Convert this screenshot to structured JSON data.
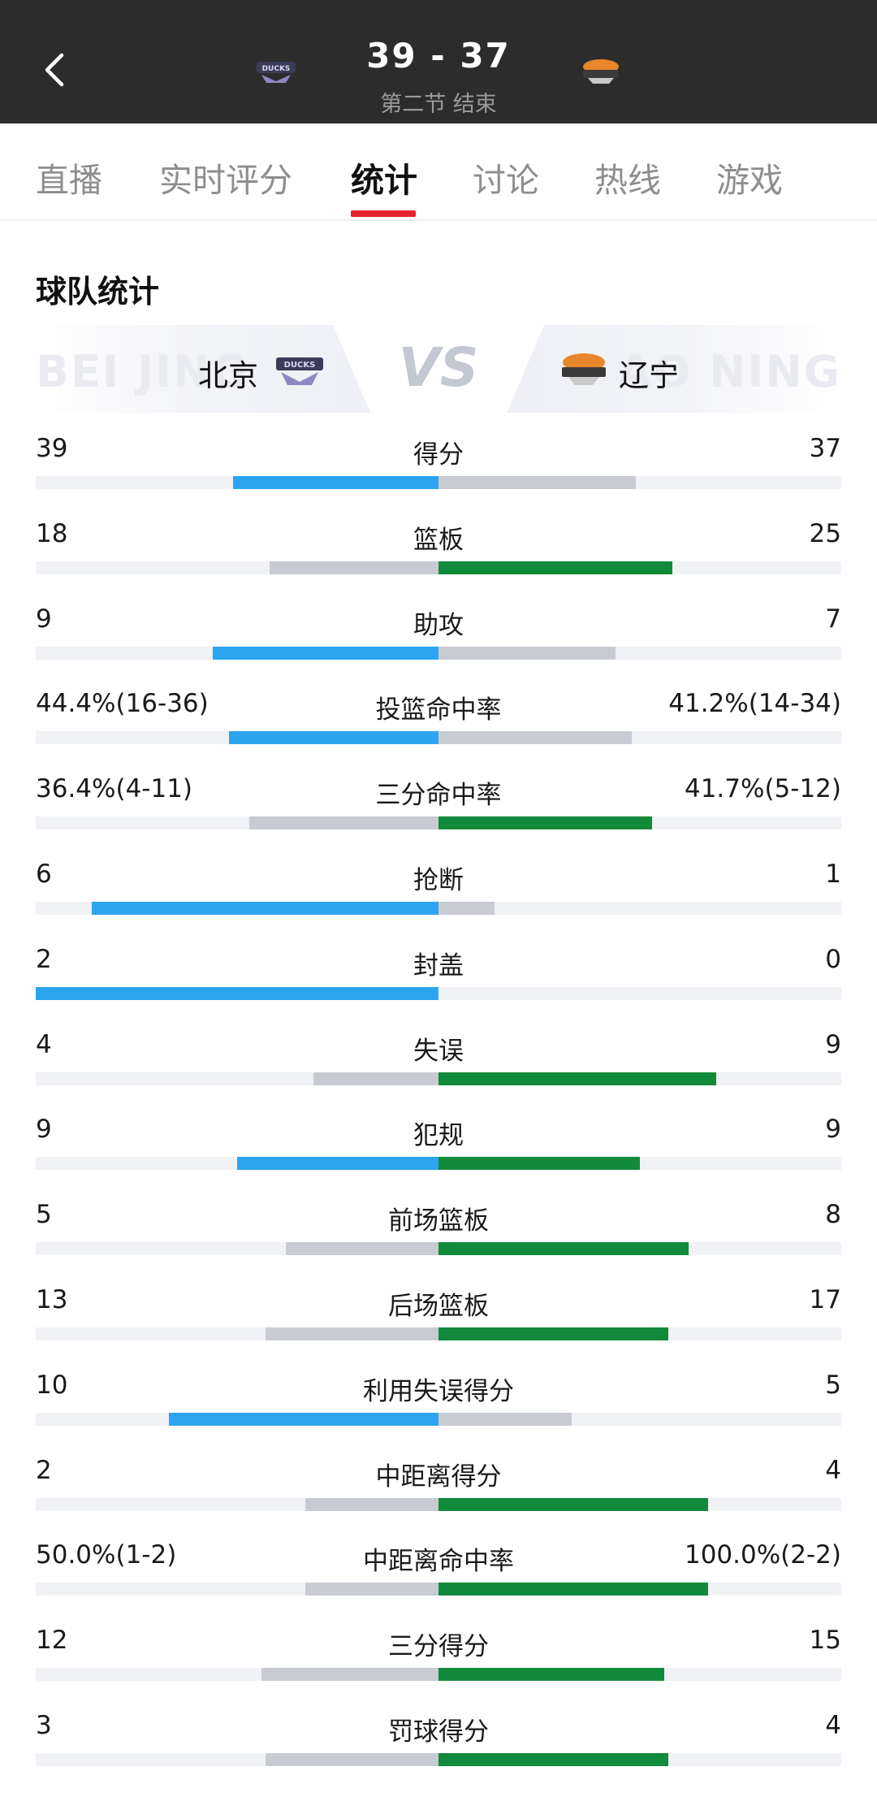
{
  "header": {
    "score": "39 - 37",
    "period": "第二节 结束"
  },
  "tabs": [
    {
      "label": "直播",
      "active": false
    },
    {
      "label": "实时评分",
      "active": false
    },
    {
      "label": "统计",
      "active": true
    },
    {
      "label": "讨论",
      "active": false
    },
    {
      "label": "热线",
      "active": false
    },
    {
      "label": "游戏",
      "active": false
    }
  ],
  "section_title": "球队统计",
  "matchup": {
    "home_name": "北京",
    "away_name": "辽宁",
    "vs": "VS",
    "home_bg_text": "BEI JING",
    "away_bg_text": "AO NING"
  },
  "colors": {
    "home_leader": "#2ba5ef",
    "away_leader": "#128a3b",
    "trailing": "#c9cbd3",
    "active_tab": "#e4242c"
  },
  "stats": [
    {
      "label": "得分",
      "home": "39",
      "away": "37",
      "home_frac": 0.51,
      "away_frac": 0.49
    },
    {
      "label": "篮板",
      "home": "18",
      "away": "25",
      "home_frac": 0.42,
      "away_frac": 0.58
    },
    {
      "label": "助攻",
      "home": "9",
      "away": "7",
      "home_frac": 0.56,
      "away_frac": 0.44
    },
    {
      "label": "投篮命中率",
      "home": "44.4%(16-36)",
      "away": "41.2%(14-34)",
      "home_frac": 0.52,
      "away_frac": 0.48
    },
    {
      "label": "三分命中率",
      "home": "36.4%(4-11)",
      "away": "41.7%(5-12)",
      "home_frac": 0.47,
      "away_frac": 0.53
    },
    {
      "label": "抢断",
      "home": "6",
      "away": "1",
      "home_frac": 0.86,
      "away_frac": 0.14
    },
    {
      "label": "封盖",
      "home": "2",
      "away": "0",
      "home_frac": 1.0,
      "away_frac": 0.0
    },
    {
      "label": "失误",
      "home": "4",
      "away": "9",
      "home_frac": 0.31,
      "away_frac": 0.69
    },
    {
      "label": "犯规",
      "home": "9",
      "away": "9",
      "home_frac": 0.5,
      "away_frac": 0.5
    },
    {
      "label": "前场篮板",
      "home": "5",
      "away": "8",
      "home_frac": 0.38,
      "away_frac": 0.62
    },
    {
      "label": "后场篮板",
      "home": "13",
      "away": "17",
      "home_frac": 0.43,
      "away_frac": 0.57
    },
    {
      "label": "利用失误得分",
      "home": "10",
      "away": "5",
      "home_frac": 0.67,
      "away_frac": 0.33
    },
    {
      "label": "中距离得分",
      "home": "2",
      "away": "4",
      "home_frac": 0.33,
      "away_frac": 0.67
    },
    {
      "label": "中距离命中率",
      "home": "50.0%(1-2)",
      "away": "100.0%(2-2)",
      "home_frac": 0.33,
      "away_frac": 0.67
    },
    {
      "label": "三分得分",
      "home": "12",
      "away": "15",
      "home_frac": 0.44,
      "away_frac": 0.56
    },
    {
      "label": "罚球得分",
      "home": "3",
      "away": "4",
      "home_frac": 0.43,
      "away_frac": 0.57
    }
  ]
}
